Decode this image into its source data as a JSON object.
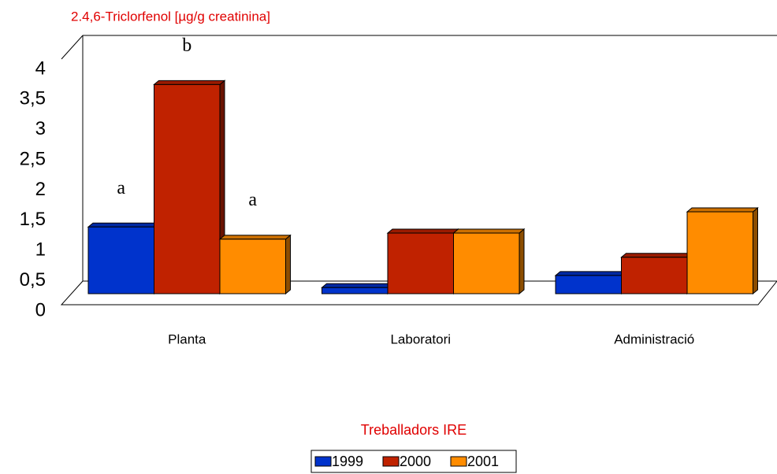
{
  "chart_data": {
    "type": "bar3d",
    "title": "2.4,6-Triclorfenol [µg/g creatinina]",
    "categories": [
      "Planta",
      "Laboratori",
      "Administració"
    ],
    "series": [
      {
        "name": "1999",
        "color": "#0033cc",
        "values": [
          1.1,
          0.1,
          0.3
        ]
      },
      {
        "name": "2000",
        "color": "#c02200",
        "values": [
          3.45,
          1.0,
          0.6
        ]
      },
      {
        "name": "2001",
        "color": "#ff8c00",
        "values": [
          0.9,
          1.0,
          1.35
        ]
      }
    ],
    "annotations": [
      "a",
      "b",
      "a"
    ],
    "legend_title": "Treballadors IRE",
    "ylim": [
      0,
      4
    ],
    "yticks": [
      0,
      {
        "value": 0.5,
        "label": "0,5"
      },
      1,
      {
        "value": 1.5,
        "label": "1,5"
      },
      2,
      {
        "value": 2.5,
        "label": "2,5"
      },
      3,
      {
        "value": 3.5,
        "label": "3,5"
      },
      4
    ],
    "legend": "bottom"
  }
}
